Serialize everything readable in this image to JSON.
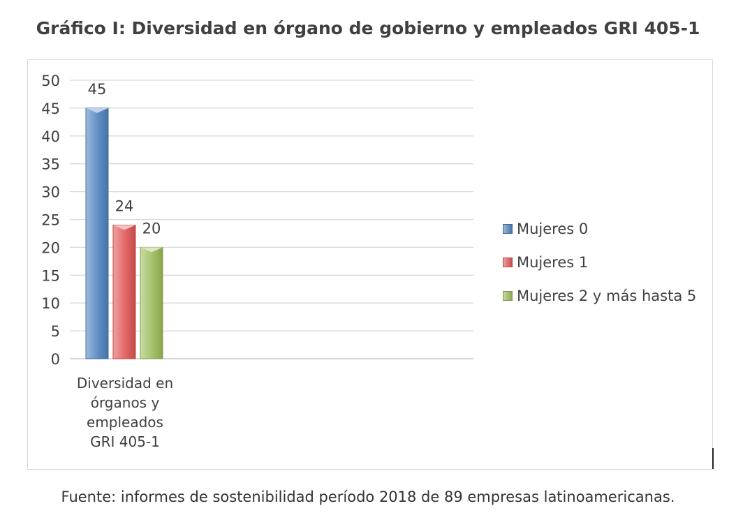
{
  "title": "Gráfico I: Diversidad en órgano de gobierno y empleados GRI 405-1",
  "source_note": "Fuente: informes de sostenibilidad período 2018 de 89 empresas latinoamericanas.",
  "chart_data": {
    "type": "bar",
    "categories": [
      "Diversidad en órganos y empleados GRI 405-1"
    ],
    "category_lines": [
      "Diversidad en",
      "órganos y",
      "empleados",
      "GRI 405-1"
    ],
    "series": [
      {
        "name": "Mujeres 0",
        "values": [
          45
        ],
        "color": "#4f81bd"
      },
      {
        "name": "Mujeres 1",
        "values": [
          24
        ],
        "color": "#e05555"
      },
      {
        "name": "Mujeres 2 y más hasta 5",
        "values": [
          20
        ],
        "color": "#9bbb59"
      }
    ],
    "ylim": [
      0,
      50
    ],
    "yticks": [
      "0",
      "5",
      "10",
      "15",
      "20",
      "25",
      "30",
      "35",
      "40",
      "45",
      "50"
    ],
    "data_labels": [
      "45",
      "24",
      "20"
    ],
    "grid": true,
    "legend_position": "right",
    "xlabel": "",
    "ylabel": ""
  }
}
